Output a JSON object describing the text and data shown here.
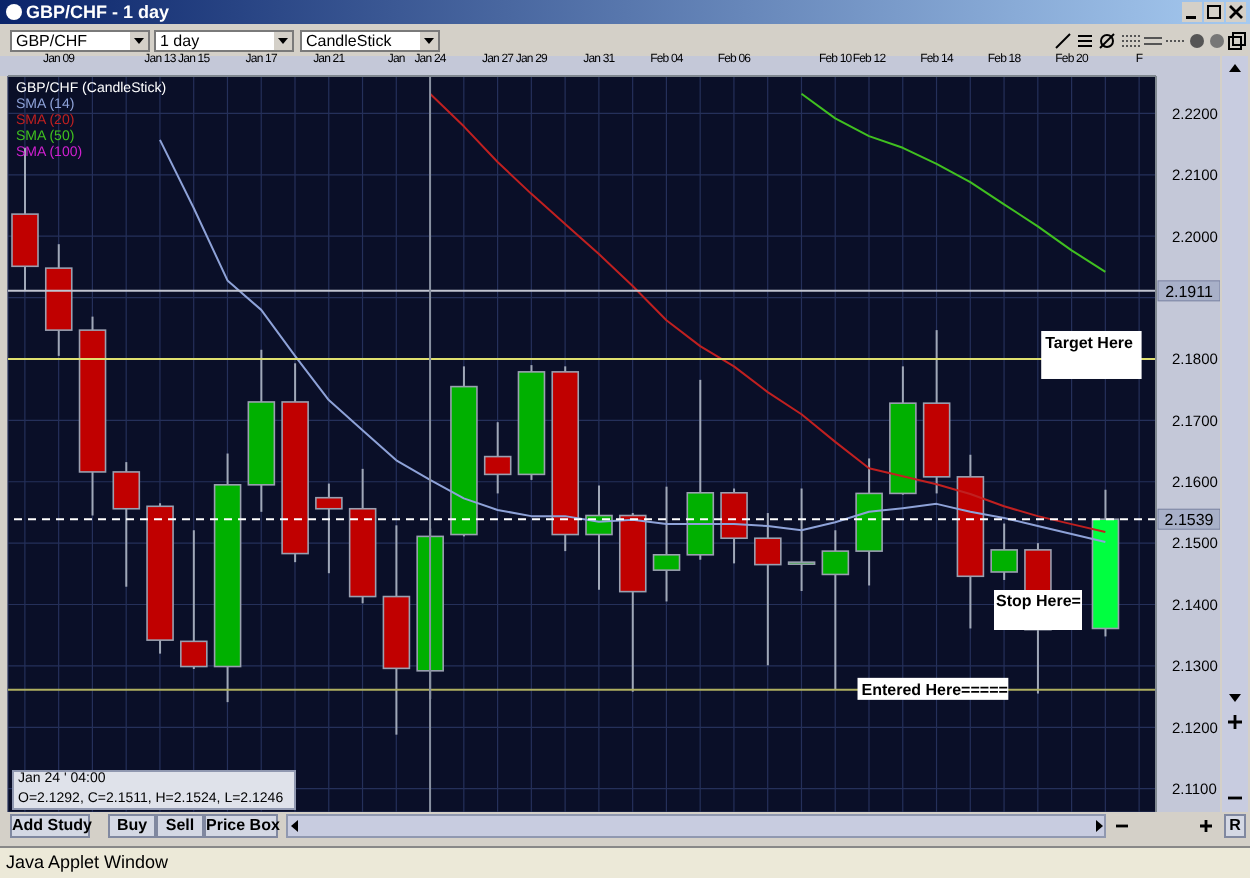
{
  "chart_data": {
    "type": "candlestick",
    "title": "GBP/CHF - 1 day",
    "legend_title": "GBP/CHF (CandleStick)",
    "legend": "top left",
    "grid": true,
    "categories": [
      null,
      "Jan 09",
      null,
      null,
      "Jan 13",
      "Jan 15",
      null,
      "Jan 17",
      null,
      "Jan 21",
      null,
      "Jan",
      "Jan 24",
      null,
      "Jan 27",
      "Jan 29",
      null,
      "Jan 31",
      null,
      "Feb 04",
      null,
      "Feb 06",
      null,
      null,
      "Feb 10",
      "Feb 12",
      null,
      "Feb 14",
      null,
      "Feb 18",
      null,
      "Feb 20",
      null,
      "F"
    ],
    "ohlc": [
      [
        2.2036,
        2.2144,
        2.1912,
        2.1951
      ],
      [
        2.1948,
        2.1987,
        2.1805,
        2.1847
      ],
      [
        2.1847,
        2.1869,
        2.1545,
        2.1616
      ],
      [
        2.1616,
        2.1632,
        2.1429,
        2.1556
      ],
      [
        2.156,
        2.1565,
        2.132,
        2.1342
      ],
      [
        2.134,
        2.1521,
        2.1295,
        2.1299
      ],
      [
        2.1299,
        2.1646,
        2.1241,
        2.1595
      ],
      [
        2.1595,
        2.1815,
        2.1551,
        2.173
      ],
      [
        2.173,
        2.1793,
        2.1469,
        2.1483
      ],
      [
        2.1574,
        2.1597,
        2.1451,
        2.1556
      ],
      [
        2.1556,
        2.1621,
        2.1402,
        2.1413
      ],
      [
        2.1413,
        2.1529,
        2.1188,
        2.1296
      ],
      [
        2.1292,
        2.1524,
        2.1246,
        2.1511
      ],
      [
        2.1514,
        2.1788,
        2.1511,
        2.1755
      ],
      [
        2.1641,
        2.1697,
        2.1581,
        2.1612
      ],
      [
        2.1612,
        2.179,
        2.1603,
        2.1779
      ],
      [
        2.1779,
        2.1788,
        2.1487,
        2.1514
      ],
      [
        2.1514,
        2.1594,
        2.1424,
        2.1545
      ],
      [
        2.1545,
        2.1549,
        2.1258,
        2.1421
      ],
      [
        2.1456,
        2.1592,
        2.1405,
        2.1481
      ],
      [
        2.1481,
        2.1766,
        2.1473,
        2.1582
      ],
      [
        2.1582,
        2.1589,
        2.1467,
        2.1508
      ],
      [
        2.1508,
        2.1549,
        2.1301,
        2.1465
      ],
      [
        2.1467,
        2.1589,
        2.1422,
        2.1469
      ],
      [
        2.1449,
        2.1521,
        2.1261,
        2.1487
      ],
      [
        2.1487,
        2.1638,
        2.1431,
        2.1581
      ],
      [
        2.1581,
        2.1788,
        2.1579,
        2.1728
      ],
      [
        2.1728,
        2.1847,
        2.1581,
        2.1608
      ],
      [
        2.1608,
        2.1644,
        2.1361,
        2.1446
      ],
      [
        2.1453,
        2.1532,
        2.144,
        2.1489
      ],
      [
        2.1489,
        2.15,
        2.1255,
        2.1359
      ],
      null,
      [
        2.1361,
        2.1587,
        2.1348,
        2.1539
      ],
      null
    ],
    "colors": [
      "#c00000",
      "#c00000",
      "#c00000",
      "#c00000",
      "#c00000",
      "#c00000",
      "#00b000",
      "#00b000",
      "#c00000",
      "#c00000",
      "#c00000",
      "#c00000",
      "#00b000",
      "#00b000",
      "#c00000",
      "#00b000",
      "#c00000",
      "#00b000",
      "#c00000",
      "#00b000",
      "#00b000",
      "#c00000",
      "#c00000",
      "#00b000",
      "#00b000",
      "#00b000",
      "#00b000",
      "#c00000",
      "#c00000",
      "#00b000",
      "#c00000",
      null,
      "#00ff40",
      null
    ],
    "series": [
      {
        "name": "SMA (14)",
        "type": "line",
        "color": "#8ea2d8",
        "values": [
          null,
          null,
          null,
          null,
          2.2157,
          2.2046,
          2.1928,
          2.188,
          2.1805,
          2.1733,
          2.1684,
          2.1635,
          2.1603,
          2.1573,
          2.1554,
          2.1544,
          2.1544,
          2.1535,
          2.1538,
          2.1531,
          2.1531,
          2.1531,
          2.1528,
          2.1521,
          2.1534,
          2.1551,
          2.1557,
          2.1564,
          2.1551,
          2.1541,
          2.1528,
          2.1515,
          2.1502,
          null
        ]
      },
      {
        "name": "SMA (20)",
        "type": "line",
        "color": "#c02020",
        "values": [
          null,
          null,
          null,
          null,
          null,
          null,
          null,
          null,
          null,
          null,
          null,
          null,
          2.2232,
          2.2179,
          2.2121,
          2.2069,
          2.202,
          2.1971,
          2.1919,
          2.1863,
          2.1821,
          2.1788,
          2.1746,
          2.171,
          2.1665,
          2.1622,
          2.1609,
          2.1596,
          2.158,
          2.156,
          2.1544,
          2.1531,
          2.1518,
          null
        ]
      },
      {
        "name": "SMA (50)",
        "type": "line",
        "color": "#40c020",
        "values": [
          null,
          null,
          null,
          null,
          null,
          null,
          null,
          null,
          null,
          null,
          null,
          null,
          null,
          null,
          null,
          null,
          null,
          null,
          null,
          null,
          null,
          null,
          null,
          2.2232,
          2.2192,
          2.2163,
          2.2144,
          2.2118,
          2.2088,
          2.2052,
          2.2016,
          2.1977,
          2.1942,
          null
        ]
      },
      {
        "name": "SMA (100)",
        "type": "line",
        "color": "#d020d0",
        "values": [
          null,
          null,
          null,
          null,
          null,
          null,
          null,
          null,
          null,
          null,
          null,
          null,
          null,
          null,
          null,
          null,
          null,
          null,
          null,
          null,
          null,
          null,
          null,
          null,
          null,
          null,
          null,
          null,
          null,
          null,
          null,
          null,
          null,
          null
        ]
      }
    ],
    "ylim": [
      2.1062,
      2.2261
    ],
    "yticks": [
      {
        "value": 2.11,
        "label": "2.1100"
      },
      {
        "value": 2.12,
        "label": "2.1200"
      },
      {
        "value": 2.13,
        "label": "2.1300"
      },
      {
        "value": 2.14,
        "label": "2.1400"
      },
      {
        "value": 2.15,
        "label": "2.1500"
      },
      {
        "value": 2.16,
        "label": "2.1600"
      },
      {
        "value": 2.17,
        "label": "2.1700"
      },
      {
        "value": 2.18,
        "label": "2.1800"
      },
      {
        "value": 2.19,
        "label": null
      },
      {
        "value": 2.2,
        "label": "2.2000"
      },
      {
        "value": 2.21,
        "label": "2.2100"
      },
      {
        "value": 2.22,
        "label": "2.2200"
      }
    ],
    "ref_lines": [
      {
        "axis": "y",
        "value": 2.1911,
        "label": "2.1911",
        "color": "#c0c4d0"
      },
      {
        "axis": "y",
        "value": 2.18,
        "label": "Target Here",
        "color": "#e0e070"
      },
      {
        "axis": "y",
        "value": 2.1539,
        "label": "2.1539",
        "color": "#ffffff",
        "line_style": "dashed"
      },
      {
        "axis": "y",
        "value": 2.1261,
        "label": "Entered Here=====",
        "color": "#b0b060"
      },
      {
        "axis": "x",
        "value": "Jan 24",
        "color": "#8890a0"
      }
    ],
    "annotations": [
      "GBP/CHF",
      "1 day",
      "CandleStick",
      "Jan 24 ' 04:00",
      "O=2.1292, C=2.1511, H=2.1524, L=2.1246",
      "Add Study",
      "Buy",
      "Sell",
      "Price Box",
      "R",
      "Java Applet Window",
      "Stop Here="
    ]
  }
}
